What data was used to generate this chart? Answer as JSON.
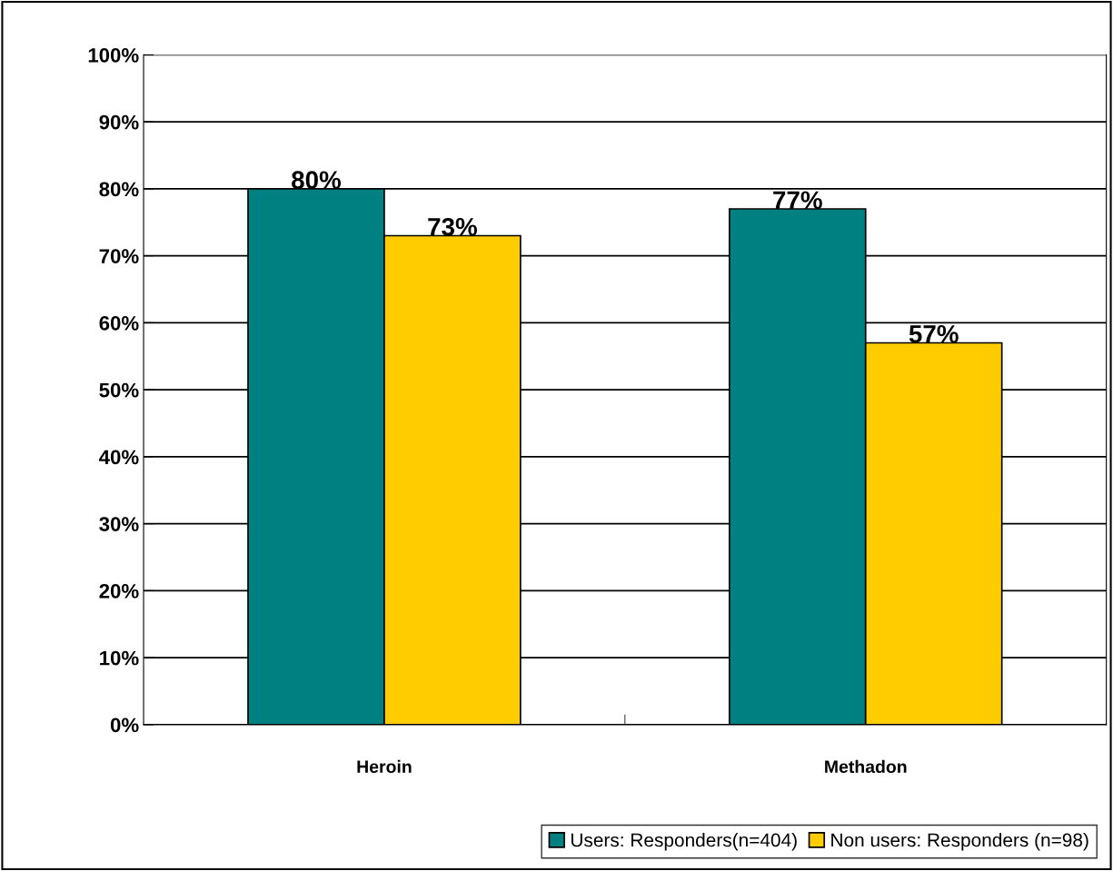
{
  "chart_data": {
    "type": "bar",
    "categories": [
      "Heroin",
      "Methadon"
    ],
    "series": [
      {
        "name": "Users: Responders(n=404)",
        "color": "#008080",
        "values": [
          80,
          77
        ]
      },
      {
        "name": "Non users: Responders (n=98)",
        "color": "#ffcc00",
        "values": [
          73,
          57
        ]
      }
    ],
    "ylim": [
      0,
      100
    ],
    "yticks": [
      {
        "value": 0,
        "label": "0%"
      },
      {
        "value": 10,
        "label": "10%"
      },
      {
        "value": 20,
        "label": "20%"
      },
      {
        "value": 30,
        "label": "30%"
      },
      {
        "value": 40,
        "label": "40%"
      },
      {
        "value": 50,
        "label": "50%"
      },
      {
        "value": 60,
        "label": "60%"
      },
      {
        "value": 70,
        "label": "70%"
      },
      {
        "value": 80,
        "label": "80%"
      },
      {
        "value": 90,
        "label": "90%"
      },
      {
        "value": 100,
        "label": "100%"
      }
    ],
    "value_labels": [
      [
        "80%",
        "77%"
      ],
      [
        "73%",
        "57%"
      ]
    ],
    "grid": "y",
    "legend": "bottom"
  }
}
